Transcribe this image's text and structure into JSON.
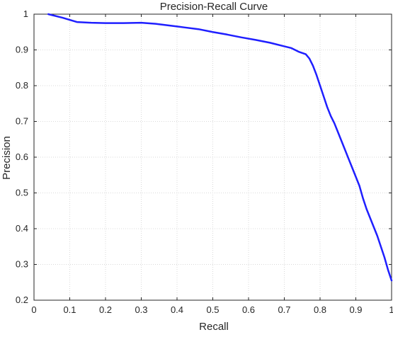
{
  "chart_data": {
    "type": "line",
    "title": "Precision-Recall Curve",
    "xlabel": "Recall",
    "ylabel": "Precision",
    "xlim": [
      0,
      1
    ],
    "ylim": [
      0.2,
      1
    ],
    "xticks": [
      "0",
      "0.1",
      "0.2",
      "0.3",
      "0.4",
      "0.5",
      "0.6",
      "0.7",
      "0.8",
      "0.9",
      "1"
    ],
    "yticks": [
      "0.2",
      "0.3",
      "0.4",
      "0.5",
      "0.6",
      "0.7",
      "0.8",
      "0.9",
      "1"
    ],
    "grid": true,
    "series": [
      {
        "color": "#1f1fff",
        "x": [
          0.04,
          0.08,
          0.12,
          0.16,
          0.2,
          0.25,
          0.3,
          0.34,
          0.38,
          0.42,
          0.46,
          0.5,
          0.54,
          0.58,
          0.62,
          0.66,
          0.7,
          0.72,
          0.74,
          0.76,
          0.77,
          0.78,
          0.79,
          0.8,
          0.81,
          0.82,
          0.83,
          0.84,
          0.85,
          0.86,
          0.87,
          0.88,
          0.89,
          0.9,
          0.91,
          0.92,
          0.93,
          0.94,
          0.95,
          0.96,
          0.97,
          0.98,
          0.99,
          1.0
        ],
        "y": [
          1.0,
          0.99,
          0.978,
          0.976,
          0.975,
          0.975,
          0.976,
          0.973,
          0.968,
          0.963,
          0.958,
          0.95,
          0.943,
          0.935,
          0.928,
          0.92,
          0.91,
          0.905,
          0.895,
          0.888,
          0.876,
          0.856,
          0.83,
          0.8,
          0.77,
          0.74,
          0.715,
          0.695,
          0.67,
          0.645,
          0.62,
          0.595,
          0.57,
          0.545,
          0.52,
          0.485,
          0.455,
          0.43,
          0.405,
          0.38,
          0.35,
          0.32,
          0.285,
          0.255
        ]
      }
    ]
  },
  "colors": {
    "line": "#1f1fff",
    "grid": "#d9d9d9",
    "axes": "#262626",
    "background": "#ffffff"
  }
}
